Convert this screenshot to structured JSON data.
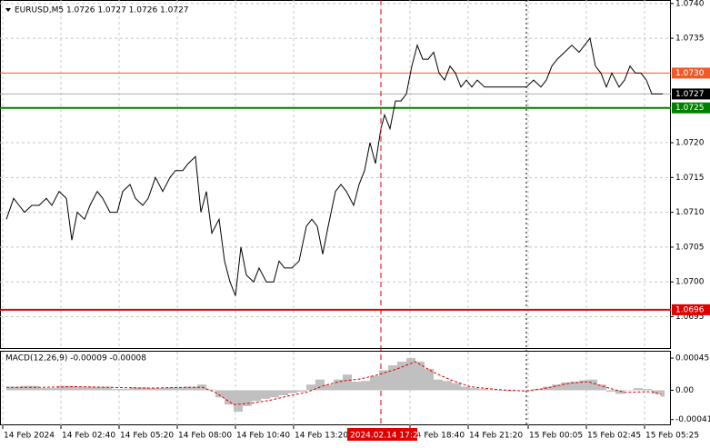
{
  "chart_data": [
    {
      "type": "line",
      "title": "EURUSD,M5  1.0726 1.0727 1.0726 1.0727",
      "x": [
        2,
        6,
        9,
        12,
        16,
        20,
        24,
        27,
        31,
        35,
        38,
        41,
        45,
        48,
        52,
        55,
        59,
        63,
        66,
        70,
        73,
        77,
        80,
        84,
        88,
        92,
        95,
        99,
        102,
        106,
        109,
        112,
        115,
        119,
        122,
        125,
        128,
        131,
        134,
        138,
        141,
        145,
        149,
        152,
        155,
        159,
        163,
        167,
        170,
        173,
        176,
        179,
        183,
        186,
        189,
        193,
        196,
        199,
        202,
        205,
        208,
        210,
        213,
        216,
        219,
        222,
        225,
        228,
        231,
        234,
        237,
        240,
        243,
        246,
        249,
        252,
        255,
        258,
        261,
        265,
        269,
        273,
        277,
        280,
        284,
        288,
        292,
        296,
        299,
        302,
        305,
        309,
        313,
        317,
        320,
        323,
        326,
        329,
        332,
        335,
        339,
        342,
        345,
        348,
        351,
        354,
        357,
        360,
        363
      ],
      "values": [
        1.0709,
        1.0712,
        1.0711,
        1.071,
        1.0711,
        1.0711,
        1.0712,
        1.0711,
        1.0713,
        1.0712,
        1.0706,
        1.071,
        1.0709,
        1.0711,
        1.0713,
        1.0712,
        1.071,
        1.071,
        1.0713,
        1.0714,
        1.0712,
        1.0711,
        1.0712,
        1.0715,
        1.0713,
        1.0715,
        1.0716,
        1.0716,
        1.0717,
        1.0718,
        1.071,
        1.0713,
        1.0707,
        1.0709,
        1.0703,
        1.07,
        1.0698,
        1.0705,
        1.0701,
        1.07,
        1.0702,
        1.07,
        1.07,
        1.0703,
        1.0702,
        1.0702,
        1.0703,
        1.0708,
        1.0709,
        1.0708,
        1.0704,
        1.0708,
        1.0713,
        1.0714,
        1.0713,
        1.0711,
        1.0714,
        1.0716,
        1.072,
        1.0717,
        1.0722,
        1.0724,
        1.0722,
        1.0726,
        1.0726,
        1.0727,
        1.0731,
        1.0734,
        1.0732,
        1.0732,
        1.0733,
        1.073,
        1.0729,
        1.0731,
        1.073,
        1.0728,
        1.0729,
        1.0728,
        1.0729,
        1.0728,
        1.0728,
        1.0728,
        1.0728,
        1.0728,
        1.0728,
        1.0728,
        1.0729,
        1.0728,
        1.0729,
        1.0731,
        1.0732,
        1.0733,
        1.0734,
        1.0733,
        1.0734,
        1.0735,
        1.0731,
        1.073,
        1.0728,
        1.073,
        1.0728,
        1.0729,
        1.0731,
        1.073,
        1.073,
        1.0729,
        1.0727,
        1.0727,
        1.0727
      ],
      "color": "#000000",
      "xlim": [
        -1.5,
        367.5
      ],
      "ylim": [
        1.06905,
        1.07405
      ],
      "yticks": [
        {
          "value": 1.074,
          "label": "1.0740"
        },
        1.0735,
        {
          "value": 1.072,
          "label": "1.0720"
        },
        1.0715,
        {
          "value": 1.071,
          "label": "1.0710"
        },
        1.0705,
        {
          "value": 1.07,
          "label": "1.0700"
        },
        1.0695
      ],
      "xticks": [
        {
          "value": 0,
          "label": "14 Feb 2024"
        },
        {
          "value": 32,
          "label": "14 Feb 02:40"
        },
        {
          "value": 64,
          "label": "14 Feb 05:20"
        },
        {
          "value": 96,
          "label": "14 Feb 08:00"
        },
        {
          "value": 128,
          "label": "14 Feb 10:40"
        },
        {
          "value": 160,
          "label": "14 Feb 13:20"
        },
        {
          "value": 224,
          "label": "14 Feb 18:40"
        },
        {
          "value": 256,
          "label": "14 Feb 21:20"
        },
        {
          "value": 289,
          "label": "15 Feb 00:05"
        },
        {
          "value": 321,
          "label": "15 Feb 02:45"
        },
        {
          "value": 353,
          "label": "15 Feb 05:25"
        }
      ],
      "grid": true,
      "levels": [
        {
          "value": 1.073,
          "label": "1.0730",
          "color": "#f05a28"
        },
        {
          "value": 1.0725,
          "label": "1.0725",
          "color": "#008000"
        },
        {
          "value": 1.0696,
          "label": "1.0696",
          "color": "#e00000"
        }
      ],
      "current_price": {
        "value": 1.0727,
        "label": "1.0727"
      },
      "cursor": {
        "x": 208,
        "label": "2024.02.14 17:20"
      },
      "day_separator": 288
    },
    {
      "type": "macd",
      "title": "MACD(12,26,9) -0.00009 -0.00008",
      "histogram": {
        "color": "#c0c0c0",
        "x": [
          2,
          10,
          20,
          30,
          40,
          50,
          60,
          70,
          80,
          90,
          100,
          107,
          112,
          117,
          122,
          127,
          132,
          137,
          142,
          147,
          152,
          157,
          162,
          167,
          172,
          177,
          182,
          187,
          192,
          197,
          202,
          207,
          212,
          217,
          222,
          227,
          232,
          237,
          242,
          247,
          252,
          257,
          262,
          267,
          272,
          277,
          282,
          287,
          292,
          297,
          302,
          307,
          312,
          317,
          322,
          327,
          332,
          337,
          342,
          347,
          352,
          357,
          362
        ],
        "values": [
          5e-05,
          6e-05,
          3e-05,
          6e-05,
          5e-05,
          5e-05,
          2e-05,
          4e-05,
          3e-05,
          4e-05,
          5e-05,
          8e-05,
          1e-05,
          -0.0001,
          -0.0002,
          -0.0003,
          -0.00022,
          -0.00015,
          -0.00012,
          -0.0001,
          -7e-05,
          -4e-05,
          -2e-05,
          8e-05,
          0.00015,
          8e-05,
          0.00015,
          0.00022,
          0.00012,
          0.00013,
          0.0002,
          0.00028,
          0.00035,
          0.0004,
          0.00045,
          0.0004,
          0.0003,
          0.00015,
          0.00013,
          0.0001,
          5e-05,
          3e-05,
          2e-05,
          1e-05,
          0,
          -1e-05,
          0,
          -1e-05,
          2e-05,
          5e-05,
          8e-05,
          0.00011,
          0.00012,
          0.00014,
          0.00015,
          8e-05,
          -2e-05,
          -5e-05,
          0,
          3e-05,
          2e-05,
          -5e-05,
          -9e-05
        ]
      },
      "signal": {
        "color": "#e00000",
        "x": [
          2,
          20,
          40,
          60,
          80,
          100,
          110,
          117,
          127,
          137,
          147,
          157,
          167,
          177,
          187,
          197,
          207,
          217,
          227,
          237,
          247,
          257,
          272,
          287,
          297,
          312,
          322,
          332,
          342,
          357,
          362
        ],
        "values": [
          4e-05,
          4e-05,
          5e-05,
          4e-05,
          3e-05,
          4e-05,
          4e-05,
          -3e-05,
          -0.0002,
          -0.00018,
          -0.00014,
          -8e-05,
          -3e-05,
          7e-05,
          0.00013,
          0.00016,
          0.00022,
          0.0003,
          0.0004,
          0.00025,
          0.00014,
          5e-05,
          1e-05,
          -1e-05,
          2e-05,
          0.0001,
          0.00012,
          4e-05,
          -3e-05,
          -2e-05,
          -6e-05
        ]
      },
      "xlim": [
        -1.5,
        367.5
      ],
      "ylim": [
        -0.00049,
        0.00054
      ],
      "yticks": [
        0.00045,
        {
          "value": 0,
          "label": "0.00"
        },
        -0.00041
      ]
    }
  ]
}
